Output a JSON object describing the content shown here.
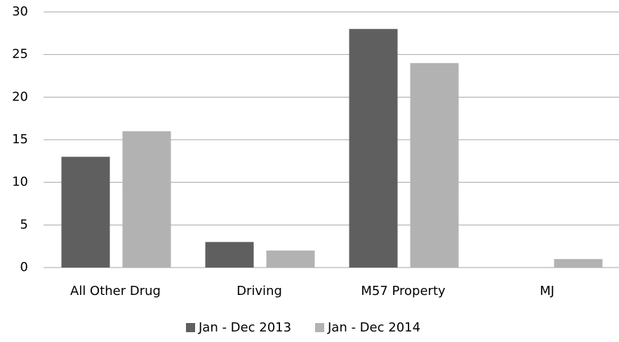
{
  "chart_data": {
    "type": "bar",
    "categories": [
      "All Other Drug",
      "Driving",
      "M57 Property",
      "MJ"
    ],
    "series": [
      {
        "name": "Jan - Dec 2013",
        "color": "#5f5f5f",
        "values": [
          13,
          3,
          28,
          0
        ]
      },
      {
        "name": "Jan - Dec 2014",
        "color": "#b2b2b2",
        "values": [
          16,
          2,
          24,
          1
        ]
      }
    ],
    "ylim": [
      0,
      30
    ],
    "yticks": [
      0,
      5,
      10,
      15,
      20,
      25,
      30
    ],
    "grid": true,
    "legend": "bottom"
  }
}
